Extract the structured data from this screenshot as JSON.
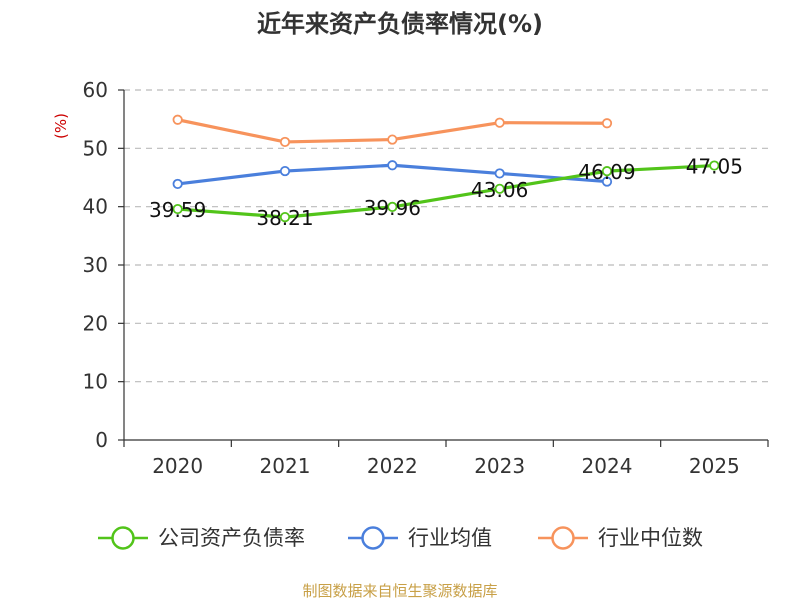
{
  "chart_data": {
    "type": "line",
    "title": "近年来资产负债率情况(%)",
    "ylabel": "(%)",
    "xlabel": "",
    "categories": [
      "2020",
      "2021",
      "2022",
      "2023",
      "2024",
      "2025"
    ],
    "ylim": [
      0,
      60
    ],
    "yticks": [
      0,
      10,
      20,
      30,
      40,
      50,
      60
    ],
    "grid": true,
    "legend_position": "bottom",
    "series": [
      {
        "name": "公司资产负债率",
        "color": "#52c41a",
        "values": [
          39.59,
          38.21,
          39.96,
          43.06,
          46.09,
          47.05
        ],
        "labels": [
          "39.59",
          "38.21",
          "39.96",
          "43.06",
          "46.09",
          "47.05"
        ]
      },
      {
        "name": "行业均值",
        "color": "#4a7fdc",
        "values": [
          43.9,
          46.1,
          47.1,
          45.7,
          44.3,
          null
        ]
      },
      {
        "name": "行业中位数",
        "color": "#f7935c",
        "values": [
          54.9,
          51.1,
          51.5,
          54.4,
          54.3,
          null
        ]
      }
    ]
  },
  "footer": {
    "source": "制图数据来自恒生聚源数据库",
    "source_color": "#c8a047"
  },
  "colors": {
    "ylabel": "#cc0000",
    "axis": "#333333",
    "grid": "#bbbbbb"
  }
}
